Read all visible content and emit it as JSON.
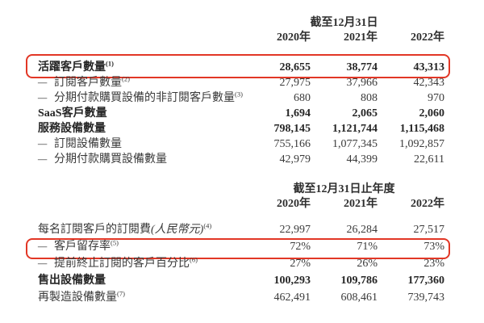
{
  "page": {
    "background": "#ffffff",
    "text_color": "#333333",
    "highlight_color": "#e23726"
  },
  "meta": {
    "dash_prefix": "–"
  },
  "tables": [
    {
      "name": "customer-and-device-data",
      "period_header": "截至12月31日",
      "columns": [
        "2020年",
        "2021年",
        "2022年"
      ],
      "rows": [
        {
          "label": "活躍客戶數量",
          "note": "(1)",
          "style": "bold",
          "highlighted": true,
          "values": [
            "28,655",
            "38,774",
            "43,313"
          ]
        },
        {
          "label": "訂閱客戶數量",
          "note": "(2)",
          "style": "sub",
          "values": [
            "27,975",
            "37,966",
            "42,343"
          ]
        },
        {
          "label": "分期付款購買設備的非訂閱客戶數量",
          "note": "(3)",
          "style": "sub",
          "values": [
            "680",
            "808",
            "970"
          ]
        },
        {
          "label": "SaaS客戶數量",
          "style": "bold",
          "values": [
            "1,694",
            "2,065",
            "2,060"
          ]
        },
        {
          "label": "服務設備數量",
          "style": "bold",
          "values": [
            "798,145",
            "1,121,744",
            "1,115,468"
          ]
        },
        {
          "label": "訂閱設備數量",
          "style": "sub",
          "values": [
            "755,166",
            "1,077,345",
            "1,092,857"
          ]
        },
        {
          "label": "分期付款購買設備數量",
          "style": "sub",
          "values": [
            "42,979",
            "44,399",
            "22,611"
          ]
        }
      ]
    },
    {
      "name": "subscription-metrics",
      "period_header": "截至12月31日止年度",
      "columns": [
        "2020年",
        "2021年",
        "2022年"
      ],
      "rows": [
        {
          "label": "每名訂閱客戶的訂閱費",
          "italic": "(人民幣元)",
          "note": "(4)",
          "style": "plain",
          "values": [
            "22,997",
            "26,284",
            "27,517"
          ]
        },
        {
          "label": "客戶留存率",
          "note": "(5)",
          "style": "sub",
          "highlighted": true,
          "values": [
            "72%",
            "71%",
            "73%"
          ]
        },
        {
          "label": "提前終止訂閱的客戶百分比",
          "note": "(6)",
          "style": "sub",
          "values": [
            "27%",
            "26%",
            "23%"
          ]
        },
        {
          "label": "售出設備數量",
          "style": "bold",
          "values": [
            "100,293",
            "109,786",
            "177,360"
          ]
        },
        {
          "label": "再製造設備數量",
          "note": "(7)",
          "style": "plain",
          "values": [
            "462,491",
            "608,461",
            "739,743"
          ]
        }
      ]
    }
  ]
}
